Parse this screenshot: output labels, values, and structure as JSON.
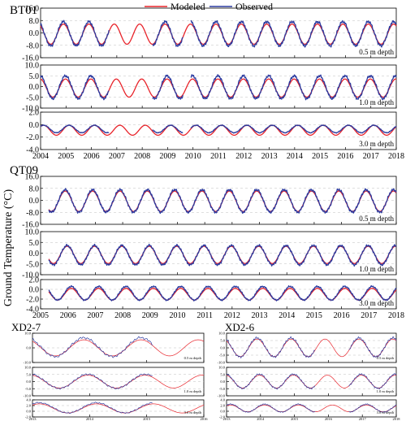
{
  "figure": {
    "ylabel": "Ground Temperature (°C)",
    "legend": [
      {
        "label": "Modeled",
        "color": "#e8232a"
      },
      {
        "label": "Observed",
        "color": "#2b3a9f"
      }
    ]
  },
  "chart_data": [
    {
      "type": "line",
      "site": "BT01",
      "xlim": [
        2004,
        2018
      ],
      "x_ticks": [
        "2004",
        "2005",
        "2006",
        "2007",
        "2008",
        "2009",
        "2010",
        "2011",
        "2012",
        "2013",
        "2014",
        "2015",
        "2016",
        "2017",
        "2018"
      ],
      "panels": [
        {
          "depth_label": "0.5 m depth",
          "ylim": [
            -16,
            16
          ],
          "y_ticks": [
            "16.0",
            "8.0",
            "0.0",
            "-8.0",
            "-16.0"
          ],
          "series": [
            {
              "name": "Modeled",
              "color": "#e8232a",
              "mean": -0.8,
              "amplitude": 6.5,
              "phase": 0.4,
              "x_range": [
                2004.0,
                2018.0
              ]
            },
            {
              "name": "Observed",
              "color": "#2b3a9f",
              "mean": -0.5,
              "amplitude": 7.8,
              "phase": 0.4,
              "x_range": [
                2004.0,
                2018.0
              ],
              "gaps": [
                [
                  2006.7,
                  2008.4
                ],
                [
                  2009.6,
                  2009.9
                ]
              ]
            }
          ]
        },
        {
          "depth_label": "1.0 m depth",
          "ylim": [
            -10,
            10
          ],
          "y_ticks": [
            "10.0",
            "5.0",
            "0.0",
            "-5.0",
            "-10.0"
          ],
          "series": [
            {
              "name": "Modeled",
              "color": "#e8232a",
              "mean": -0.7,
              "amplitude": 4.2,
              "phase": 0.48,
              "x_range": [
                2004.0,
                2018.0
              ]
            },
            {
              "name": "Observed",
              "color": "#2b3a9f",
              "mean": -0.3,
              "amplitude": 5.3,
              "phase": 0.48,
              "x_range": [
                2004.0,
                2018.0
              ],
              "gaps": [
                [
                  2006.7,
                  2008.4
                ],
                [
                  2009.6,
                  2009.9
                ]
              ]
            }
          ]
        },
        {
          "depth_label": "3.0 m depth",
          "ylim": [
            -4,
            2
          ],
          "y_ticks": [
            "2.0",
            "0.0",
            "-2.0",
            "-4.0"
          ],
          "series": [
            {
              "name": "Modeled",
              "color": "#e8232a",
              "mean": -0.9,
              "amplitude": 0.8,
              "phase": 0.62,
              "x_range": [
                2004.0,
                2018.0
              ]
            },
            {
              "name": "Observed",
              "color": "#2b3a9f",
              "mean": -0.7,
              "amplitude": 0.6,
              "phase": 0.62,
              "x_range": [
                2004.0,
                2018.0
              ],
              "gaps": [
                [
                  2006.7,
                  2008.4
                ],
                [
                  2009.6,
                  2009.9
                ]
              ]
            }
          ]
        }
      ]
    },
    {
      "type": "line",
      "site": "QT09",
      "xlim": [
        2005,
        2018
      ],
      "x_ticks": [
        "2005",
        "2006",
        "2007",
        "2008",
        "2009",
        "2010",
        "2011",
        "2012",
        "2013",
        "2014",
        "2015",
        "2016",
        "2017",
        "2018"
      ],
      "panels": [
        {
          "depth_label": "0.5 m depth",
          "ylim": [
            -16,
            16
          ],
          "y_ticks": [
            "16.0",
            "8.0",
            "0.0",
            "-8.0",
            "-16.0"
          ],
          "series": [
            {
              "name": "Modeled",
              "color": "#e8232a",
              "mean": -0.6,
              "amplitude": 6.8,
              "phase": 0.4,
              "x_range": [
                2005.3,
                2018.0
              ]
            },
            {
              "name": "Observed",
              "color": "#2b3a9f",
              "mean": -0.4,
              "amplitude": 7.5,
              "phase": 0.4,
              "x_range": [
                2005.3,
                2018.0
              ]
            }
          ]
        },
        {
          "depth_label": "1.0 m depth",
          "ylim": [
            -10,
            10
          ],
          "y_ticks": [
            "10.0",
            "5.0",
            "0.0",
            "-5.0",
            "-10.0"
          ],
          "series": [
            {
              "name": "Modeled",
              "color": "#e8232a",
              "mean": -0.8,
              "amplitude": 4.0,
              "phase": 0.47,
              "x_range": [
                2005.3,
                2018.0
              ]
            },
            {
              "name": "Observed",
              "color": "#2b3a9f",
              "mean": -0.9,
              "amplitude": 4.5,
              "phase": 0.47,
              "x_range": [
                2005.3,
                2018.0
              ]
            }
          ]
        },
        {
          "depth_label": "3.0 m depth",
          "ylim": [
            -4,
            2
          ],
          "y_ticks": [
            "2.0",
            "0.0",
            "-2.0",
            "-4.0"
          ],
          "series": [
            {
              "name": "Modeled",
              "color": "#e8232a",
              "mean": -1.0,
              "amplitude": 1.2,
              "phase": 0.62,
              "x_range": [
                2005.3,
                2018.0
              ]
            },
            {
              "name": "Observed",
              "color": "#2b3a9f",
              "mean": -0.8,
              "amplitude": 1.4,
              "phase": 0.62,
              "x_range": [
                2005.3,
                2018.0
              ]
            }
          ]
        }
      ]
    },
    {
      "type": "line",
      "site": "XD2-7",
      "xlim": [
        2013,
        2016
      ],
      "x_ticks": [
        "2013",
        "2014",
        "2015",
        "2016"
      ],
      "panels": [
        {
          "depth_label": "0.5 m depth",
          "ylim": [
            -10,
            10
          ],
          "y_ticks": [
            "10.0",
            "0.0",
            "-10.0"
          ],
          "series": [
            {
              "name": "Modeled",
              "color": "#e8232a",
              "mean": 0.0,
              "amplitude": 5.5,
              "phase": 0.4,
              "x_range": [
                2013.0,
                2016.0
              ]
            },
            {
              "name": "Observed",
              "color": "#2b3a9f",
              "mean": 0.5,
              "amplitude": 6.5,
              "phase": 0.4,
              "x_range": [
                2013.0,
                2015.1
              ]
            }
          ]
        },
        {
          "depth_label": "1.0 m depth",
          "ylim": [
            -10,
            10
          ],
          "y_ticks": [
            "10.0",
            "5.0",
            "0.0",
            "-5.0",
            "-10.0"
          ],
          "series": [
            {
              "name": "Modeled",
              "color": "#e8232a",
              "mean": 0.0,
              "amplitude": 4.5,
              "phase": 0.47,
              "x_range": [
                2013.0,
                2016.0
              ]
            },
            {
              "name": "Observed",
              "color": "#2b3a9f",
              "mean": 0.2,
              "amplitude": 5.0,
              "phase": 0.47,
              "x_range": [
                2013.0,
                2015.1
              ]
            }
          ]
        },
        {
          "depth_label": "3.0 m depth",
          "ylim": [
            -2,
            4
          ],
          "y_ticks": [
            "4.0",
            "2.0",
            "0.0",
            "-2.0"
          ],
          "series": [
            {
              "name": "Modeled",
              "color": "#e8232a",
              "mean": 1.0,
              "amplitude": 1.6,
              "phase": 0.62,
              "x_range": [
                2013.0,
                2016.0
              ]
            },
            {
              "name": "Observed",
              "color": "#2b3a9f",
              "mean": 1.2,
              "amplitude": 1.8,
              "phase": 0.62,
              "x_range": [
                2013.0,
                2015.1
              ]
            }
          ]
        }
      ]
    },
    {
      "type": "line",
      "site": "XD2-6",
      "xlim": [
        2013,
        2018
      ],
      "x_ticks": [
        "2013",
        "2014",
        "2015",
        "2016",
        "2017",
        "2018"
      ],
      "panels": [
        {
          "depth_label": "0.5 m depth",
          "ylim": [
            -10,
            10
          ],
          "y_ticks": [
            "10.0",
            "5.0",
            "0.0",
            "-5.0",
            "-10.0"
          ],
          "series": [
            {
              "name": "Modeled",
              "color": "#e8232a",
              "mean": 0.0,
              "amplitude": 6.0,
              "phase": 0.4,
              "x_range": [
                2013.0,
                2018.0
              ]
            },
            {
              "name": "Observed",
              "color": "#2b3a9f",
              "mean": 0.3,
              "amplitude": 6.5,
              "phase": 0.4,
              "x_range": [
                2013.0,
                2018.0
              ],
              "gaps": [
                [
                  2015.6,
                  2016.6
                ]
              ]
            }
          ]
        },
        {
          "depth_label": "1.0 m depth",
          "ylim": [
            -10,
            10
          ],
          "y_ticks": [
            "10.0",
            "5.0",
            "0.0",
            "-5.0",
            "-10.0"
          ],
          "series": [
            {
              "name": "Modeled",
              "color": "#e8232a",
              "mean": 0.0,
              "amplitude": 4.5,
              "phase": 0.47,
              "x_range": [
                2013.0,
                2018.0
              ]
            },
            {
              "name": "Observed",
              "color": "#2b3a9f",
              "mean": 0.2,
              "amplitude": 5.0,
              "phase": 0.47,
              "x_range": [
                2013.0,
                2018.0
              ],
              "gaps": [
                [
                  2015.6,
                  2016.6
                ]
              ]
            }
          ]
        },
        {
          "depth_label": "3.0 m depth",
          "ylim": [
            -2,
            4
          ],
          "y_ticks": [
            "4.0",
            "2.0",
            "0.0",
            "-2.0"
          ],
          "series": [
            {
              "name": "Modeled",
              "color": "#e8232a",
              "mean": 1.0,
              "amplitude": 1.2,
              "phase": 0.62,
              "x_range": [
                2013.0,
                2018.0
              ]
            },
            {
              "name": "Observed",
              "color": "#2b3a9f",
              "mean": 1.1,
              "amplitude": 1.4,
              "phase": 0.62,
              "x_range": [
                2013.0,
                2018.0
              ],
              "gaps": [
                [
                  2015.6,
                  2016.6
                ]
              ]
            }
          ]
        }
      ]
    }
  ]
}
